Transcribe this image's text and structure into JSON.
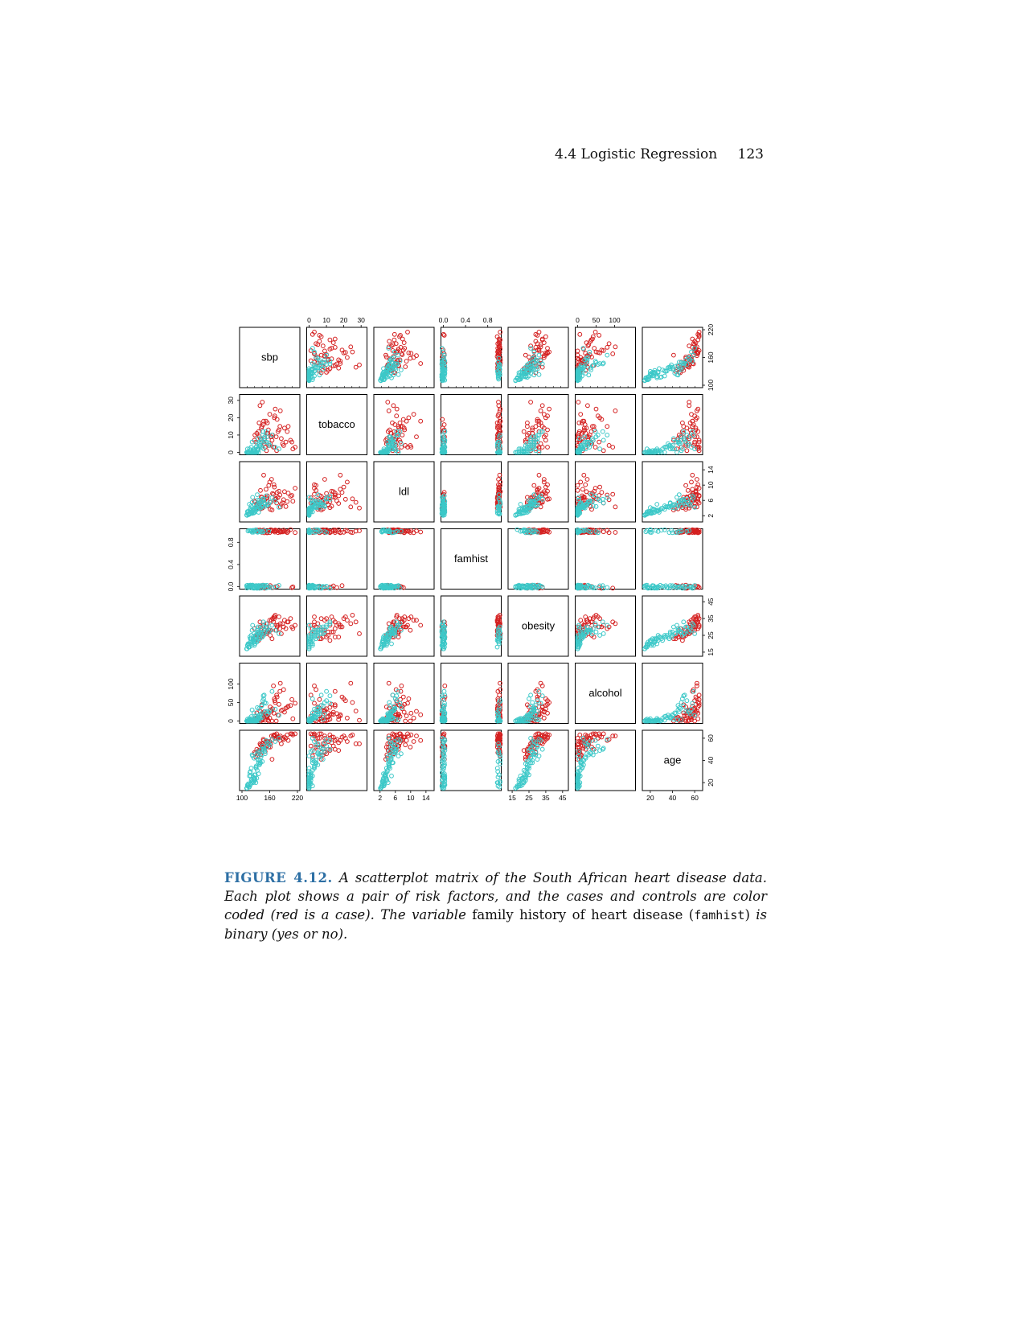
{
  "header": {
    "section": "4.4 Logistic Regression",
    "page_number": "123"
  },
  "figure": {
    "label": "FIGURE 4.12.",
    "caption_part1": "A scatterplot matrix of the South African heart disease data. Each plot shows a pair of risk factors, and the cases and controls are color coded (red is a case). The variable",
    "caption_part2": "family history of heart disease (",
    "caption_mono": "famhist",
    "caption_part3": ")",
    "caption_part4": "is binary (yes or no)."
  },
  "chart_data": {
    "type": "scatter",
    "layout": "scatterplot-matrix",
    "variables": [
      "sbp",
      "tobacco",
      "ldl",
      "famhist",
      "obesity",
      "alcohol",
      "age"
    ],
    "diagonal_labels": [
      "sbp",
      "tobacco",
      "ldl",
      "famhist",
      "obesity",
      "alcohol",
      "age"
    ],
    "ranges": {
      "sbp": [
        100,
        220
      ],
      "tobacco": [
        0,
        32
      ],
      "ldl": [
        1,
        15.5
      ],
      "famhist": [
        0,
        1
      ],
      "obesity": [
        14,
        47
      ],
      "alcohol": [
        0,
        150
      ],
      "age": [
        15,
        65
      ]
    },
    "tick_labels": {
      "sbp": [
        "100",
        "160",
        "220"
      ],
      "tobacco": [
        "0",
        "10",
        "20",
        "30"
      ],
      "ldl": [
        "2",
        "6",
        "10",
        "14"
      ],
      "famhist": [
        "0.0",
        "0.4",
        "0.8"
      ],
      "obesity": [
        "15",
        "25",
        "35",
        "45"
      ],
      "alcohol": [
        "0",
        "50",
        "100"
      ],
      "age": [
        "20",
        "40",
        "60"
      ]
    },
    "tick_values": {
      "sbp": [
        100,
        160,
        220
      ],
      "tobacco": [
        0,
        10,
        20,
        30
      ],
      "ldl": [
        2,
        6,
        10,
        14
      ],
      "famhist": [
        0,
        0.4,
        0.8
      ],
      "obesity": [
        15,
        25,
        35,
        45
      ],
      "alcohol": [
        0,
        50,
        100
      ],
      "age": [
        20,
        40,
        60
      ]
    },
    "series": [
      {
        "name": "case",
        "color": "#d42020",
        "points": [
          [
            162,
            9,
            5.5,
            1,
            28,
            30,
            55
          ],
          [
            178,
            12,
            6.8,
            1,
            31,
            16,
            60
          ],
          [
            145,
            6,
            4.2,
            0,
            26,
            4,
            52
          ],
          [
            200,
            15,
            7.9,
            1,
            33,
            40,
            58
          ],
          [
            150,
            3,
            5.1,
            1,
            27,
            2,
            48
          ],
          [
            170,
            20,
            9.5,
            1,
            35,
            60,
            62
          ],
          [
            140,
            8,
            3.8,
            0,
            24,
            10,
            45
          ],
          [
            190,
            4,
            6.2,
            1,
            30,
            85,
            59
          ],
          [
            132,
            11,
            4.9,
            1,
            25,
            22,
            50
          ],
          [
            210,
            2,
            5.8,
            0,
            29,
            6,
            63
          ],
          [
            155,
            17,
            7.2,
            1,
            32,
            12,
            56
          ],
          [
            165,
            7,
            3.5,
            0,
            23,
            0,
            41
          ],
          [
            180,
            13,
            8.4,
            1,
            36,
            45,
            61
          ],
          [
            148,
            5,
            6.0,
            1,
            28,
            25,
            54
          ],
          [
            138,
            9,
            4.6,
            0,
            26,
            3,
            47
          ],
          [
            175,
            1,
            5.3,
            1,
            31,
            70,
            64
          ],
          [
            160,
            22,
            10.8,
            1,
            34,
            8,
            57
          ],
          [
            142,
            14,
            6.9,
            0,
            27,
            18,
            53
          ],
          [
            195,
            6,
            4.4,
            1,
            29,
            35,
            60
          ],
          [
            128,
            10,
            5.6,
            1,
            24,
            1,
            46
          ],
          [
            168,
            3,
            7.6,
            0,
            33,
            95,
            62
          ],
          [
            152,
            18,
            8.9,
            1,
            30,
            14,
            58
          ],
          [
            185,
            8,
            5.0,
            1,
            26,
            28,
            55
          ],
          [
            136,
            12,
            4.1,
            0,
            22,
            5,
            49
          ],
          [
            172,
            25,
            6.4,
            1,
            37,
            50,
            63
          ],
          [
            158,
            4,
            9.9,
            1,
            28,
            0,
            52
          ],
          [
            146,
            16,
            5.9,
            0,
            31,
            20,
            59
          ],
          [
            205,
            7,
            7.1,
            1,
            35,
            42,
            64
          ],
          [
            134,
            2,
            4.7,
            1,
            25,
            9,
            44
          ],
          [
            176,
            19,
            8.1,
            0,
            30,
            65,
            61
          ],
          [
            154,
            11,
            6.6,
            1,
            27,
            11,
            57
          ],
          [
            188,
            5,
            5.4,
            1,
            32,
            30,
            60
          ],
          [
            144,
            29,
            4.0,
            1,
            26,
            2,
            55
          ],
          [
            164,
            9,
            11.5,
            1,
            34,
            26,
            62
          ],
          [
            130,
            6,
            3.9,
            0,
            23,
            7,
            43
          ],
          [
            182,
            15,
            7.4,
            1,
            29,
            80,
            58
          ],
          [
            149,
            8,
            6.1,
            0,
            28,
            15,
            51
          ],
          [
            198,
            12,
            5.7,
            1,
            33,
            37,
            63
          ],
          [
            140,
            4,
            8.6,
            1,
            30,
            0,
            54
          ],
          [
            171,
            21,
            6.3,
            1,
            36,
            55,
            60
          ],
          [
            157,
            13,
            4.5,
            0,
            27,
            19,
            56
          ],
          [
            215,
            3,
            9.2,
            1,
            31,
            48,
            64
          ],
          [
            137,
            17,
            5.2,
            1,
            24,
            4,
            49
          ],
          [
            166,
            10,
            7.8,
            1,
            35,
            33,
            59
          ],
          [
            153,
            1,
            6.7,
            0,
            26,
            13,
            53
          ],
          [
            183,
            24,
            4.3,
            1,
            32,
            102,
            62
          ],
          [
            127,
            7,
            5.9,
            1,
            29,
            6,
            47
          ],
          [
            192,
            14,
            8.3,
            1,
            34,
            24,
            61
          ],
          [
            161,
            5,
            3.7,
            0,
            25,
            38,
            52
          ],
          [
            147,
            18,
            12.6,
            1,
            31,
            17,
            58
          ],
          [
            174,
            9,
            6.5,
            1,
            28,
            0,
            60
          ],
          [
            139,
            27,
            5.5,
            1,
            33,
            27,
            55
          ],
          [
            208,
            6,
            7.3,
            0,
            30,
            58,
            64
          ],
          [
            156,
            11,
            4.8,
            1,
            27,
            3,
            57
          ],
          [
            169,
            3,
            10.1,
            1,
            36,
            21,
            63
          ],
          [
            143,
            15,
            6.8,
            1,
            24,
            44,
            50
          ]
        ]
      },
      {
        "name": "control",
        "color": "#3cc8c8",
        "points": [
          [
            118,
            0,
            2.6,
            0,
            21,
            0,
            18
          ],
          [
            124,
            1,
            3.4,
            0,
            23,
            2,
            25
          ],
          [
            130,
            0.5,
            4.1,
            1,
            22,
            0,
            20
          ],
          [
            112,
            2,
            3.0,
            0,
            19,
            5,
            17
          ],
          [
            136,
            0,
            2.9,
            0,
            24,
            1,
            28
          ],
          [
            120,
            3,
            4.6,
            1,
            25,
            12,
            33
          ],
          [
            128,
            1,
            3.8,
            0,
            20,
            0,
            22
          ],
          [
            140,
            4,
            5.2,
            0,
            27,
            8,
            38
          ],
          [
            116,
            0,
            2.4,
            1,
            18,
            3,
            16
          ],
          [
            126,
            2,
            4.9,
            0,
            26,
            22,
            42
          ],
          [
            132,
            0,
            3.6,
            0,
            21,
            0,
            24
          ],
          [
            122,
            6,
            5.5,
            1,
            28,
            30,
            45
          ],
          [
            110,
            0,
            2.2,
            0,
            17,
            0,
            15
          ],
          [
            138,
            5,
            4.4,
            0,
            24,
            16,
            36
          ],
          [
            134,
            1,
            6.1,
            1,
            29,
            4,
            48
          ],
          [
            114,
            0,
            3.1,
            0,
            20,
            1,
            19
          ],
          [
            142,
            8,
            5.7,
            0,
            26,
            40,
            50
          ],
          [
            125,
            0,
            2.8,
            1,
            22,
            0,
            21
          ],
          [
            131,
            3,
            4.3,
            0,
            25,
            9,
            35
          ],
          [
            119,
            1,
            3.3,
            0,
            23,
            2,
            26
          ],
          [
            145,
            10,
            6.4,
            1,
            30,
            55,
            53
          ],
          [
            127,
            0,
            3.7,
            0,
            19,
            0,
            23
          ],
          [
            135,
            2,
            4.8,
            0,
            27,
            14,
            40
          ],
          [
            121,
            0,
            2.7,
            1,
            21,
            6,
            20
          ],
          [
            150,
            6,
            5.0,
            0,
            28,
            25,
            46
          ],
          [
            117,
            1,
            3.5,
            0,
            24,
            0,
            29
          ],
          [
            139,
            4,
            4.2,
            1,
            23,
            11,
            37
          ],
          [
            123,
            0,
            6.8,
            0,
            31,
            3,
            44
          ],
          [
            148,
            7,
            5.3,
            0,
            26,
            70,
            51
          ],
          [
            113,
            0,
            2.5,
            1,
            20,
            0,
            17
          ],
          [
            133,
            2,
            3.9,
            0,
            22,
            7,
            31
          ],
          [
            155,
            9,
            4.7,
            0,
            29,
            19,
            56
          ],
          [
            129,
            0,
            3.2,
            1,
            25,
            1,
            27
          ],
          [
            137,
            5,
            5.9,
            0,
            27,
            34,
            47
          ],
          [
            115,
            0,
            2.3,
            0,
            18,
            0,
            16
          ],
          [
            144,
            3,
            4.5,
            1,
            24,
            10,
            39
          ],
          [
            126,
            1,
            3.6,
            0,
            21,
            2,
            24
          ],
          [
            152,
            12,
            7.2,
            0,
            32,
            48,
            58
          ],
          [
            120,
            0,
            2.9,
            0,
            23,
            0,
            22
          ],
          [
            141,
            6,
            4.0,
            1,
            26,
            20,
            43
          ],
          [
            160,
            4,
            5.6,
            0,
            28,
            28,
            54
          ],
          [
            111,
            0,
            2.1,
            0,
            17,
            0,
            15
          ],
          [
            135,
            8,
            4.9,
            0,
            30,
            5,
            41
          ],
          [
            124,
            0,
            3.4,
            1,
            22,
            0,
            25
          ],
          [
            147,
            2,
            6.0,
            0,
            25,
            60,
            49
          ],
          [
            119,
            1,
            3.0,
            0,
            20,
            3,
            19
          ],
          [
            130,
            3,
            4.3,
            0,
            24,
            13,
            34
          ],
          [
            158,
            5,
            5.1,
            1,
            27,
            24,
            55
          ],
          [
            122,
            0,
            2.6,
            0,
            19,
            0,
            21
          ],
          [
            143,
            7,
            4.6,
            0,
            29,
            42,
            45
          ],
          [
            118,
            0,
            3.9,
            1,
            23,
            1,
            30
          ],
          [
            136,
            2,
            5.4,
            0,
            26,
            9,
            38
          ],
          [
            165,
            10,
            6.7,
            0,
            31,
            80,
            59
          ],
          [
            114,
            0,
            2.4,
            0,
            18,
            0,
            17
          ],
          [
            139,
            4,
            4.1,
            1,
            25,
            17,
            40
          ],
          [
            127,
            1,
            3.5,
            0,
            22,
            4,
            27
          ],
          [
            172,
            3,
            5.8,
            0,
            28,
            32,
            57
          ],
          [
            121,
            0,
            2.8,
            0,
            21,
            0,
            23
          ],
          [
            149,
            9,
            4.4,
            1,
            27,
            50,
            48
          ],
          [
            131,
            0,
            3.7,
            0,
            24,
            2,
            33
          ],
          [
            116,
            2,
            5.0,
            0,
            20,
            7,
            26
          ],
          [
            154,
            6,
            4.8,
            0,
            30,
            26,
            52
          ],
          [
            125,
            0,
            2.7,
            1,
            22,
            0,
            20
          ],
          [
            146,
            12,
            6.3,
            0,
            33,
            68,
            50
          ],
          [
            180,
            2,
            4.2,
            0,
            26,
            15,
            60
          ],
          [
            112,
            0,
            3.1,
            0,
            19,
            0,
            18
          ],
          [
            133,
            5,
            7.5,
            1,
            28,
            36,
            46
          ],
          [
            128,
            0,
            2.9,
            0,
            23,
            1,
            24
          ]
        ]
      }
    ]
  }
}
